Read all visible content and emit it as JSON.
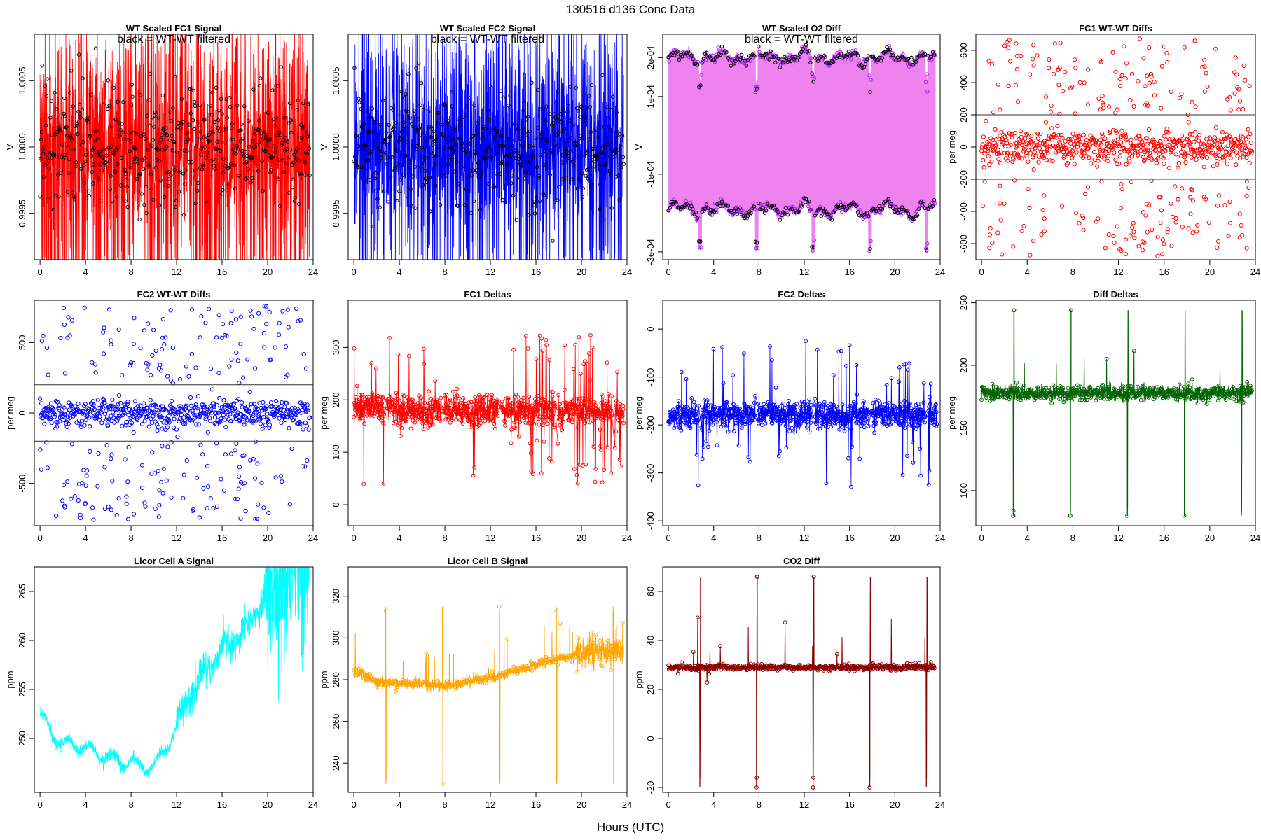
{
  "figure": {
    "title": "130516   d136   Conc Data",
    "xlabel": "Hours (UTC)"
  },
  "chart_data": [
    {
      "id": "fc1-signal",
      "type": "line",
      "title": "WT Scaled FC1 Signal",
      "annotation": "black = WT-WT filtered",
      "ylabel": "V",
      "color": "#ff0000",
      "overlay_color": "#000000",
      "xlim": [
        -0.5,
        24
      ],
      "ylim": [
        0.99915,
        1.00085
      ],
      "xticks": [
        0,
        4,
        8,
        12,
        16,
        20,
        24
      ],
      "yticks": [
        0.9995,
        1.0,
        1.0005
      ],
      "ytick_labels": [
        "0.9995",
        "1.0000",
        "1.0005"
      ],
      "style": "dense_band",
      "center": 1.0,
      "spread": 0.0006,
      "x_range": [
        0,
        23.7
      ]
    },
    {
      "id": "fc2-signal",
      "type": "line",
      "title": "WT Scaled FC2 Signal",
      "annotation": "black = WT-WT filtered",
      "ylabel": "V",
      "color": "#0000ff",
      "overlay_color": "#000000",
      "xlim": [
        -0.5,
        24
      ],
      "ylim": [
        0.99915,
        1.00085
      ],
      "xticks": [
        0,
        4,
        8,
        12,
        16,
        20,
        24
      ],
      "yticks": [
        0.9995,
        1.0,
        1.0005
      ],
      "ytick_labels": [
        "0.9995",
        "1.0000",
        "1.0005"
      ],
      "style": "dense_band",
      "center": 1.0,
      "spread": 0.0006,
      "x_range": [
        0,
        23.7
      ]
    },
    {
      "id": "o2-diff",
      "type": "line",
      "title": "WT Scaled O2 Diff",
      "annotation": "black = WT-WT filtered",
      "ylabel": "V",
      "color": "#ee82ee",
      "point_color": "#a020f0",
      "overlay_color": "#000000",
      "xlim": [
        -0.5,
        24
      ],
      "ylim": [
        -0.00032,
        0.00026
      ],
      "xticks": [
        0,
        4,
        8,
        12,
        16,
        20,
        24
      ],
      "yticks": [
        -0.0003,
        -0.0001,
        0.0001,
        0.0002
      ],
      "ytick_labels": [
        "-3e-04",
        "-1e-04",
        "1e-04",
        "2e-04"
      ],
      "style": "two_level",
      "upper": 0.0002,
      "lower": -0.00019,
      "x_range": [
        0,
        23.6
      ],
      "dip_hours": [
        2.8,
        7.8,
        12.8,
        17.8,
        22.8
      ]
    },
    {
      "id": "fc1-wt-diffs",
      "type": "scatter",
      "title": "FC1 WT-WT Diffs",
      "ylabel": "per meg",
      "color": "#ff0000",
      "xlim": [
        -0.5,
        24
      ],
      "ylim": [
        -700,
        700
      ],
      "xticks": [
        0,
        4,
        8,
        12,
        16,
        20,
        24
      ],
      "yticks": [
        -600,
        -400,
        -200,
        0,
        200,
        400,
        600
      ],
      "ytick_labels": [
        "-600",
        "-400",
        "-200",
        "0",
        "200",
        "400",
        "600"
      ],
      "hlines": [
        200,
        -200
      ],
      "style": "scatter_wide",
      "spread": 50,
      "outlier_range": [
        200,
        680
      ],
      "x_range": [
        0,
        23.7
      ]
    },
    {
      "id": "fc2-wt-diffs",
      "type": "scatter",
      "title": "FC2 WT-WT Diffs",
      "ylabel": "per meg",
      "color": "#0000ff",
      "xlim": [
        -0.5,
        24
      ],
      "ylim": [
        -800,
        800
      ],
      "xticks": [
        0,
        4,
        8,
        12,
        16,
        20,
        24
      ],
      "yticks": [
        -500,
        0,
        500
      ],
      "ytick_labels": [
        "-500",
        "0",
        "500"
      ],
      "hlines": [
        200,
        -200
      ],
      "style": "scatter_wide",
      "spread": 50,
      "outlier_range": [
        200,
        760
      ],
      "x_range": [
        0,
        23.7
      ]
    },
    {
      "id": "fc1-deltas",
      "type": "line",
      "title": "FC1 Deltas",
      "ylabel": "per meg",
      "color": "#ff0000",
      "xlim": [
        -0.5,
        24
      ],
      "ylim": [
        -40,
        390
      ],
      "xticks": [
        0,
        4,
        8,
        12,
        16,
        20,
        24
      ],
      "yticks": [
        0,
        100,
        200,
        300
      ],
      "ytick_labels": [
        "0",
        "100",
        "200",
        "300"
      ],
      "style": "noisy_series",
      "center": 180,
      "spread": 14,
      "spike_amp": 120,
      "x_range": [
        0,
        23.7
      ]
    },
    {
      "id": "fc2-deltas",
      "type": "line",
      "title": "FC2 Deltas",
      "ylabel": "per meg",
      "color": "#0000ff",
      "xlim": [
        -0.5,
        24
      ],
      "ylim": [
        -410,
        60
      ],
      "xticks": [
        0,
        4,
        8,
        12,
        16,
        20,
        24
      ],
      "yticks": [
        -400,
        -300,
        -200,
        -100,
        0
      ],
      "ytick_labels": [
        "-400",
        "-300",
        "-200",
        "-100",
        "0"
      ],
      "style": "noisy_series",
      "center": -180,
      "spread": 14,
      "spike_amp": 130,
      "x_range": [
        0,
        23.7
      ]
    },
    {
      "id": "diff-deltas",
      "type": "line",
      "title": "Diff Deltas",
      "ylabel": "per meg",
      "color": "#006400",
      "xlim": [
        -0.5,
        24
      ],
      "ylim": [
        72,
        252
      ],
      "xticks": [
        0,
        4,
        8,
        12,
        16,
        20,
        24
      ],
      "yticks": [
        100,
        150,
        200,
        250
      ],
      "ytick_labels": [
        "100",
        "150",
        "200",
        "250"
      ],
      "style": "spiky_baseline",
      "center": 178,
      "spread": 3,
      "spike_high": 244,
      "spike_low": 80,
      "x_range": [
        0,
        23.7
      ],
      "dip_hours": [
        2.8,
        7.8,
        12.8,
        17.8,
        22.8
      ]
    },
    {
      "id": "licor-a",
      "type": "line",
      "title": "Licor Cell A Signal",
      "ylabel": "ppm",
      "color": "#00ffff",
      "xlim": [
        -0.5,
        24
      ],
      "ylim": [
        244.5,
        267.5
      ],
      "xticks": [
        0,
        4,
        8,
        12,
        16,
        20,
        24
      ],
      "yticks": [
        250,
        255,
        260,
        265
      ],
      "ytick_labels": [
        "250",
        "255",
        "260",
        "265"
      ],
      "style": "licor_a",
      "trend": [
        [
          0,
          252.5
        ],
        [
          1,
          250.5
        ],
        [
          2,
          249.5
        ],
        [
          4,
          249
        ],
        [
          6,
          248
        ],
        [
          8,
          247.5
        ],
        [
          10,
          247
        ],
        [
          11,
          249
        ],
        [
          12,
          251
        ],
        [
          13,
          254
        ],
        [
          14,
          256
        ],
        [
          16,
          259
        ],
        [
          18,
          261
        ],
        [
          19,
          263
        ],
        [
          20,
          265
        ],
        [
          21,
          266
        ],
        [
          22,
          267
        ],
        [
          23.7,
          267
        ]
      ],
      "x_range": [
        0,
        23.7
      ]
    },
    {
      "id": "licor-b",
      "type": "line",
      "title": "Licor Cell B Signal",
      "ylabel": "ppm",
      "color": "#ffa500",
      "xlim": [
        -0.5,
        24
      ],
      "ylim": [
        226,
        334
      ],
      "xticks": [
        0,
        4,
        8,
        12,
        16,
        20,
        24
      ],
      "yticks": [
        240,
        260,
        280,
        300,
        320
      ],
      "ytick_labels": [
        "240",
        "260",
        "280",
        "300",
        "320"
      ],
      "style": "licor_b",
      "trend": [
        [
          0,
          284
        ],
        [
          2,
          279
        ],
        [
          4,
          278
        ],
        [
          6,
          278
        ],
        [
          8,
          277
        ],
        [
          10,
          279
        ],
        [
          12,
          281
        ],
        [
          14,
          284
        ],
        [
          16,
          287
        ],
        [
          18,
          290
        ],
        [
          19,
          291
        ],
        [
          20,
          293
        ],
        [
          22,
          294
        ],
        [
          23.7,
          294
        ]
      ],
      "spike_high": 315,
      "spike_low": 230,
      "x_range": [
        0,
        23.7
      ],
      "dip_hours": [
        2.8,
        7.8,
        12.8,
        17.8,
        22.8
      ]
    },
    {
      "id": "co2-diff",
      "type": "line",
      "title": "CO2 Diff",
      "ylabel": "ppm",
      "color": "#8b0000",
      "xlim": [
        -0.5,
        24
      ],
      "ylim": [
        -22,
        70
      ],
      "xticks": [
        0,
        4,
        8,
        12,
        16,
        20,
        24
      ],
      "yticks": [
        -20,
        0,
        20,
        40,
        60
      ],
      "ytick_labels": [
        "-20",
        "0",
        "20",
        "40",
        "60"
      ],
      "style": "spiky_baseline",
      "center": 29,
      "spread": 0.6,
      "spike_high": 66,
      "spike_low": -20,
      "x_range": [
        0,
        23.5
      ],
      "dip_hours": [
        2.8,
        7.8,
        12.8,
        17.8,
        22.8
      ]
    }
  ]
}
